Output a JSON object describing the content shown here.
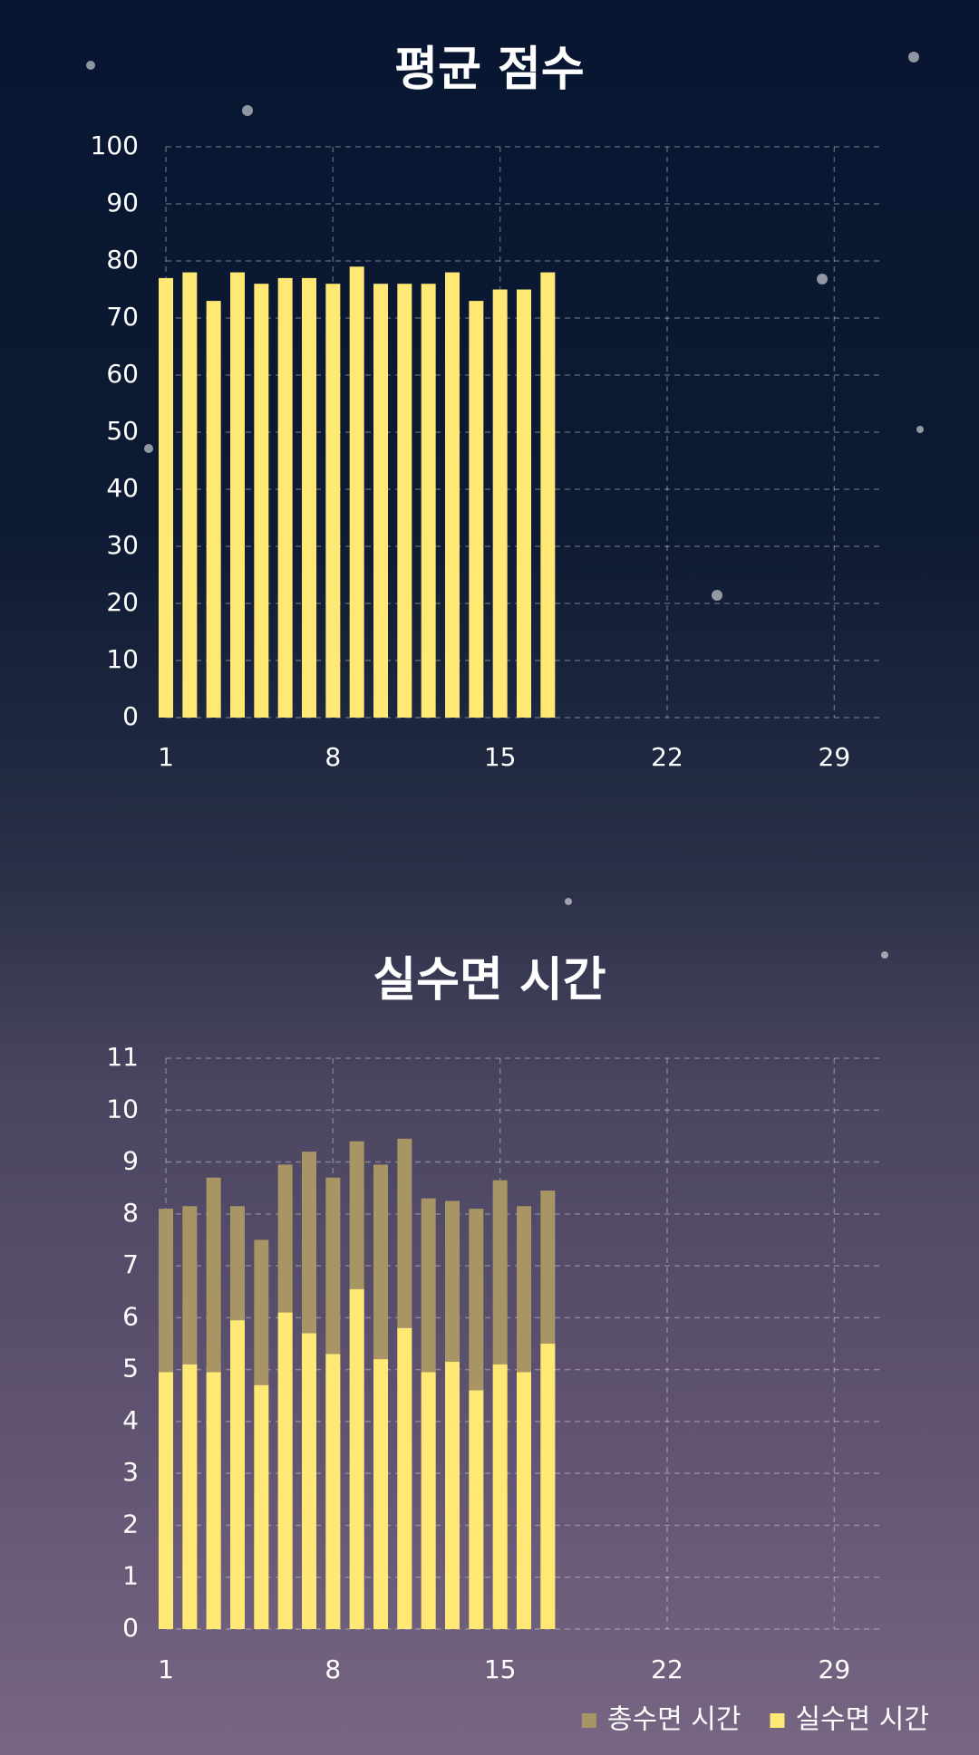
{
  "chart_data": [
    {
      "type": "bar",
      "title": "평균 점수",
      "x": [
        1,
        2,
        3,
        4,
        5,
        6,
        7,
        8,
        9,
        10,
        11,
        12,
        13,
        14,
        15,
        16,
        17
      ],
      "values": [
        77,
        78,
        73,
        78,
        76,
        77,
        77,
        76,
        79,
        76,
        76,
        76,
        78,
        73,
        75,
        75,
        78
      ],
      "color": "#ffe873",
      "xlim": [
        1,
        31
      ],
      "xticks": [
        1,
        8,
        15,
        22,
        29
      ],
      "ylim": [
        0,
        100
      ],
      "yticks": [
        0,
        10,
        20,
        30,
        40,
        50,
        60,
        70,
        80,
        90,
        100
      ],
      "grid": true
    },
    {
      "type": "bar",
      "title": "실수면 시간",
      "x": [
        1,
        2,
        3,
        4,
        5,
        6,
        7,
        8,
        9,
        10,
        11,
        12,
        13,
        14,
        15,
        16,
        17
      ],
      "series": [
        {
          "name": "총수면 시간",
          "color": "#a89565",
          "values": [
            8.1,
            8.15,
            8.7,
            8.15,
            7.5,
            8.95,
            9.2,
            8.7,
            9.4,
            8.95,
            9.45,
            8.3,
            8.25,
            8.1,
            8.65,
            8.15,
            8.45
          ]
        },
        {
          "name": "실수면 시간",
          "color": "#ffe873",
          "values": [
            4.95,
            5.1,
            4.95,
            5.95,
            4.7,
            6.1,
            5.7,
            5.3,
            6.55,
            5.2,
            5.8,
            4.95,
            5.15,
            4.6,
            5.1,
            4.95,
            5.5
          ]
        }
      ],
      "xlim": [
        1,
        31
      ],
      "xticks": [
        1,
        8,
        15,
        22,
        29
      ],
      "ylim": [
        0,
        11
      ],
      "yticks": [
        0,
        1,
        2,
        3,
        4,
        5,
        6,
        7,
        8,
        9,
        10,
        11
      ],
      "grid": true,
      "legend": "bottom-right"
    }
  ]
}
